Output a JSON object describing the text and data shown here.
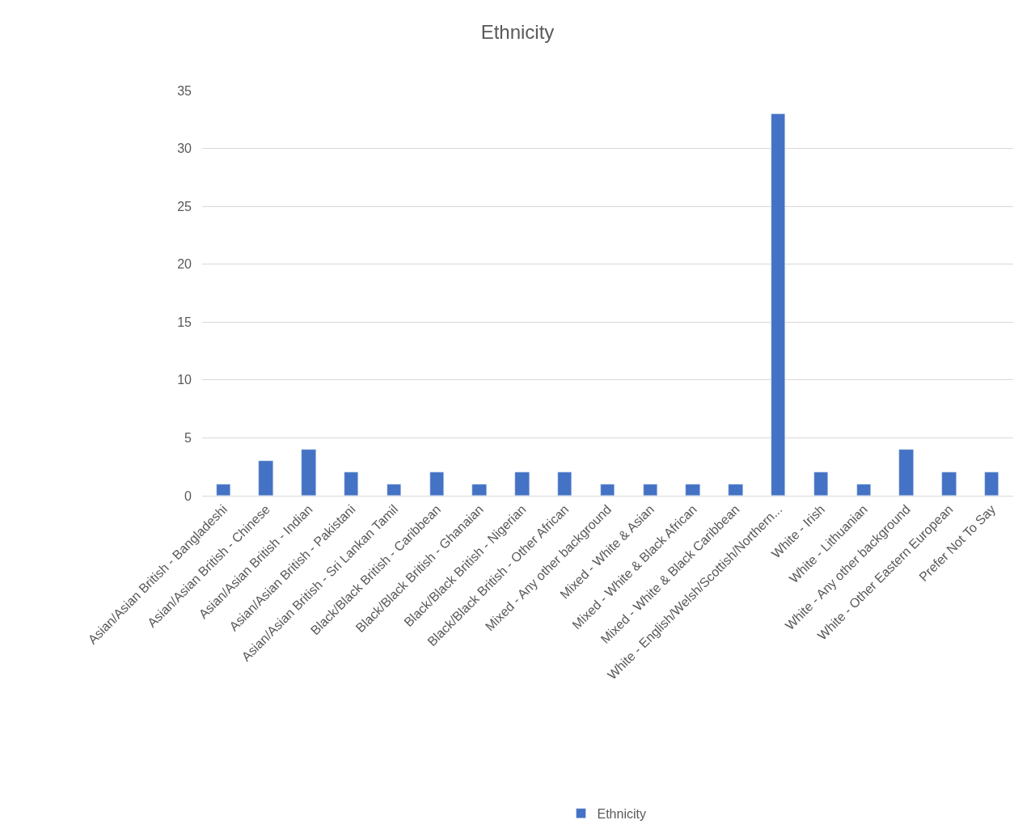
{
  "chart_data": {
    "type": "bar",
    "title": "Ethnicity",
    "categories": [
      "Asian/Asian British - Bangladeshi",
      "Asian/Asian British - Chinese",
      "Asian/Asian British - Indian",
      "Asian/Asian British - Pakistani",
      "Asian/Asian British - Sri Lankan Tamil",
      "Black/Black British - Caribbean",
      "Black/Black British - Ghanaian",
      "Black/Black British - Nigerian",
      "Black/Black British - Other African",
      "Mixed - Any other background",
      "Mixed - White & Asian",
      "Mixed - White & Black African",
      "Mixed - White & Black Caribbean",
      "White - English/Welsh/Scottish/Northern...",
      "White - Irish",
      "White - Lithuanian",
      "White - Any other background",
      "White - Other Eastern European",
      "Prefer Not To Say"
    ],
    "series": [
      {
        "name": "Ethnicity",
        "color": "#4472c4",
        "values": [
          1,
          3,
          4,
          2,
          1,
          2,
          1,
          2,
          2,
          1,
          1,
          1,
          1,
          33,
          2,
          1,
          4,
          2,
          2
        ]
      }
    ],
    "ylim": [
      0,
      35
    ],
    "yticks": [
      0,
      5,
      10,
      15,
      20,
      25,
      30,
      35
    ],
    "grid": "y",
    "legend": "bottom"
  }
}
